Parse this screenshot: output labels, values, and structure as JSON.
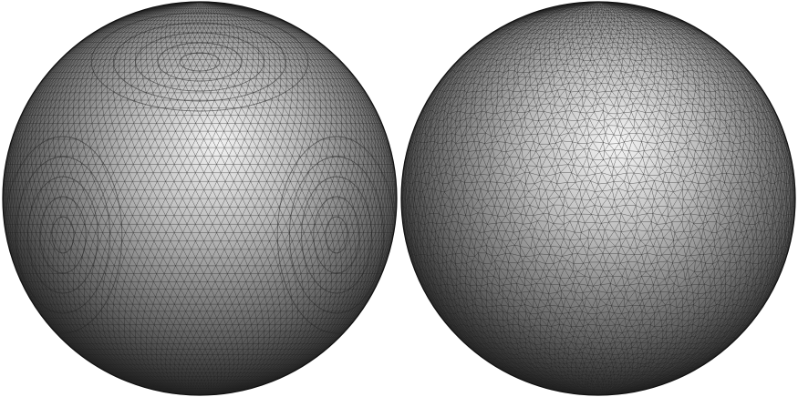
{
  "figure": {
    "background_color": "#ffffff",
    "panels": [
      {
        "name": "left-mesh-sphere",
        "mesh_style": "structured quad-derived triangulation with visible concentric cap patterns",
        "shade_light": "#f2f2f2",
        "shade_dark": "#1c1c1c",
        "edge_color": "#222222"
      },
      {
        "name": "right-mesh-sphere",
        "mesh_style": "uniform near-equilateral triangulation",
        "shade_light": "#f4f4f4",
        "shade_dark": "#1e1e1e",
        "edge_color": "#222222"
      }
    ]
  }
}
